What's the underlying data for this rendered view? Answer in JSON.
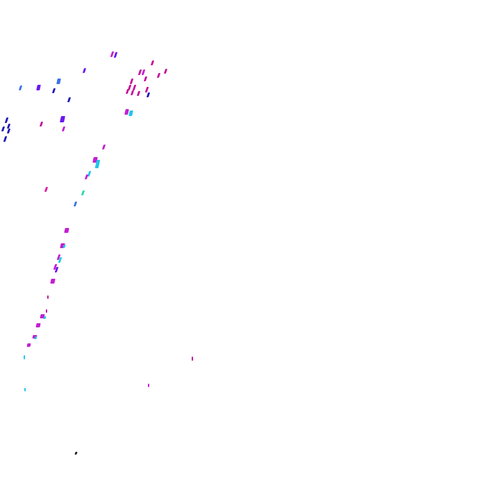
{
  "canvas": {
    "background": "#ffffff"
  },
  "palette": {
    "magenta": "#c41fd1",
    "crimson": "#c3169a",
    "violet": "#6a18f0",
    "navy": "#2018b8",
    "blue": "#3a73e8",
    "cyan": "#21c6e8",
    "teal": "#27d8a8",
    "pink": "#e01aa6",
    "dark": "#222222"
  }
}
